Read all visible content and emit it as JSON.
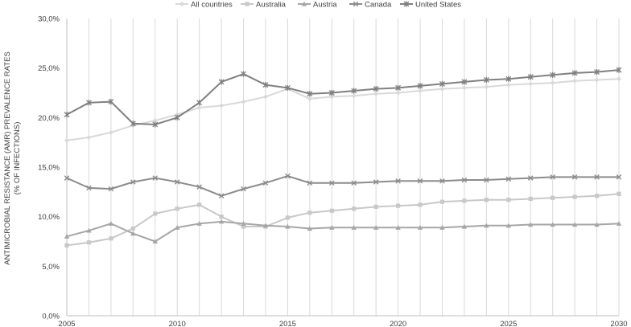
{
  "chart_data": {
    "type": "line",
    "title": "",
    "xlabel": "",
    "ylabel_lines": [
      "ANTIMICROBIAL RESISTANCE (AMR) PREVALENCE RATES",
      "(% OF INFECTIONS)"
    ],
    "x": [
      2005,
      2006,
      2007,
      2008,
      2009,
      2010,
      2011,
      2012,
      2013,
      2014,
      2015,
      2016,
      2017,
      2018,
      2019,
      2020,
      2021,
      2022,
      2023,
      2024,
      2025,
      2026,
      2027,
      2028,
      2029,
      2030
    ],
    "xticks": [
      2005,
      2010,
      2015,
      2020,
      2025,
      2030
    ],
    "xtick_labels": [
      "2005",
      "2010",
      "2015",
      "2020",
      "2025",
      "2030"
    ],
    "xlim": [
      2005,
      2030
    ],
    "ylim": [
      0,
      30
    ],
    "yticks": [
      0,
      5,
      10,
      15,
      20,
      25,
      30
    ],
    "ytick_labels": [
      "0,0%",
      "5,0%",
      "10,0%",
      "15,0%",
      "20,0%",
      "25,0%",
      "30,0%"
    ],
    "grid": "vertical",
    "legend_position": "top",
    "series": [
      {
        "name": "All countries",
        "color": "#d9d9d9",
        "marker": "diamond",
        "values": [
          17.7,
          18.0,
          18.5,
          19.2,
          19.7,
          20.3,
          21.0,
          21.2,
          21.6,
          22.1,
          22.9,
          21.9,
          22.1,
          22.2,
          22.4,
          22.5,
          22.7,
          22.9,
          23.0,
          23.1,
          23.3,
          23.4,
          23.5,
          23.7,
          23.8,
          23.9
        ]
      },
      {
        "name": "Australia",
        "color": "#c8c8c8",
        "marker": "square",
        "values": [
          7.1,
          7.4,
          7.8,
          8.8,
          10.3,
          10.8,
          11.2,
          10.0,
          9.0,
          9.0,
          9.9,
          10.4,
          10.6,
          10.8,
          11.0,
          11.1,
          11.2,
          11.5,
          11.6,
          11.7,
          11.7,
          11.8,
          11.9,
          12.0,
          12.1,
          12.3
        ]
      },
      {
        "name": "Austria",
        "color": "#a6a6a6",
        "marker": "triangle",
        "values": [
          8.0,
          8.6,
          9.3,
          8.3,
          7.5,
          8.9,
          9.3,
          9.5,
          9.3,
          9.1,
          9.0,
          8.8,
          8.9,
          8.9,
          8.9,
          8.9,
          8.9,
          8.9,
          9.0,
          9.1,
          9.1,
          9.2,
          9.2,
          9.2,
          9.2,
          9.3
        ]
      },
      {
        "name": "Canada",
        "color": "#8c8c8c",
        "marker": "x",
        "values": [
          13.9,
          12.9,
          12.8,
          13.5,
          13.9,
          13.5,
          13.0,
          12.1,
          12.8,
          13.4,
          14.1,
          13.4,
          13.4,
          13.4,
          13.5,
          13.6,
          13.6,
          13.6,
          13.7,
          13.7,
          13.8,
          13.9,
          14.0,
          14.0,
          14.0,
          14.0
        ]
      },
      {
        "name": "United States",
        "color": "#808080",
        "marker": "star",
        "values": [
          20.3,
          21.5,
          21.6,
          19.4,
          19.3,
          20.0,
          21.5,
          23.6,
          24.4,
          23.3,
          23.0,
          22.4,
          22.5,
          22.7,
          22.9,
          23.0,
          23.2,
          23.4,
          23.6,
          23.8,
          23.9,
          24.1,
          24.3,
          24.5,
          24.6,
          24.8
        ]
      }
    ]
  }
}
